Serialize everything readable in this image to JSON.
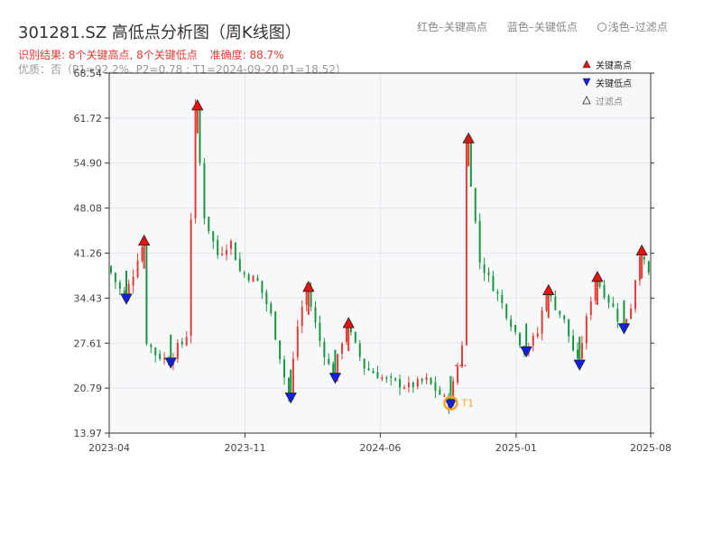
{
  "header": {
    "title": "301281.SZ 高低点分析图（周K线图）",
    "legend_red": "红色–关键高点",
    "legend_blue": "蓝色–关键低点",
    "legend_light": "浅色–过滤点",
    "result": "识别结果: 8个关键高点, 8个关键低点",
    "accuracy": "准确度: 88.7%",
    "quality": "优质：否（P1=92.2%, P2=0.78 ; T1=2024-09-20 P1=18.52）"
  },
  "chart_data": {
    "type": "candlestick",
    "ylim": [
      13.97,
      68.54
    ],
    "yticks": [
      "68.54",
      "61.72",
      "54.90",
      "48.08",
      "41.26",
      "34.43",
      "27.61",
      "20.79",
      "13.97"
    ],
    "xticks": [
      "2023-04",
      "2023-11",
      "2024-06",
      "2025-01",
      "2025-08"
    ],
    "legend": {
      "high": "关键高点",
      "low": "关键低点",
      "filtered": "过滤点"
    },
    "key_highs": [
      {
        "date": "2023-05-26",
        "value": 43.0
      },
      {
        "date": "2023-08-18",
        "value": 63.5
      },
      {
        "date": "2024-02-09",
        "value": 36.0
      },
      {
        "date": "2024-04-12",
        "value": 30.5
      },
      {
        "date": "2024-10-18",
        "value": 58.5
      },
      {
        "date": "2025-02-21",
        "value": 35.5
      },
      {
        "date": "2025-05-09",
        "value": 37.5
      },
      {
        "date": "2025-07-18",
        "value": 41.5
      }
    ],
    "key_lows": [
      {
        "date": "2023-04-28",
        "value": 34.5
      },
      {
        "date": "2023-07-07",
        "value": 24.8
      },
      {
        "date": "2024-01-12",
        "value": 19.5
      },
      {
        "date": "2024-03-22",
        "value": 22.5
      },
      {
        "date": "2024-09-20",
        "value": 18.52
      },
      {
        "date": "2025-01-17",
        "value": 26.5
      },
      {
        "date": "2025-04-11",
        "value": 24.5
      },
      {
        "date": "2025-06-20",
        "value": 30.0
      }
    ],
    "t1_marker": {
      "label": "T1",
      "date": "2024-09-20",
      "value": 18.52
    },
    "colors": {
      "up": "#e03c31",
      "down": "#1a9641",
      "high": "#e81010",
      "low": "#1020e8",
      "t1": "#f5a623",
      "accent": "#e03c31"
    }
  }
}
